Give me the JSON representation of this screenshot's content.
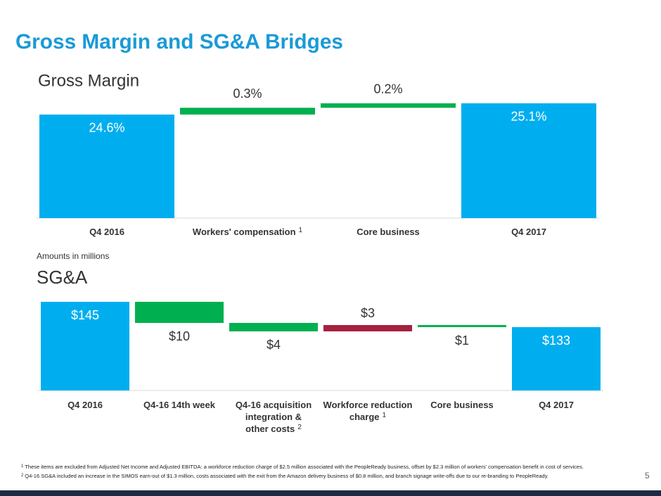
{
  "title": "Gross Margin and SG&A Bridges",
  "note": "Amounts in millions",
  "chart_data": [
    {
      "type": "waterfall",
      "title": "Gross Margin",
      "categories": [
        "Q4 2016",
        "Workers' compensation",
        "Core business",
        "Q4 2017"
      ],
      "category_notes": [
        null,
        "1",
        null,
        null
      ],
      "measure": [
        "total",
        "relative",
        "relative",
        "total"
      ],
      "values": [
        24.6,
        0.3,
        0.2,
        25.1
      ],
      "value_labels": [
        "24.6%",
        "0.3%",
        "0.2%",
        "25.1%"
      ],
      "colors": [
        "#00aeef",
        "#00b050",
        "#00b050",
        "#00aeef"
      ],
      "ylim": [
        20,
        26
      ]
    },
    {
      "type": "waterfall",
      "title": "SG&A",
      "categories": [
        [
          "Q4 2016"
        ],
        [
          "Q4-16 14th week"
        ],
        [
          "Q4-16 acquisition",
          "integration &",
          "other costs"
        ],
        [
          "Workforce reduction",
          "charge"
        ],
        [
          "Core business"
        ],
        [
          "Q4 2017"
        ]
      ],
      "category_notes": [
        null,
        null,
        "2",
        "1",
        null,
        null
      ],
      "measure": [
        "total",
        "relative",
        "relative",
        "relative",
        "relative",
        "total"
      ],
      "values": [
        145,
        -10,
        -4,
        3,
        -1,
        133
      ],
      "value_labels": [
        "$145",
        "$10",
        "$4",
        "$3",
        "$1",
        "$133"
      ],
      "colors": [
        "#00aeef",
        "#00b050",
        "#00b050",
        "#a6203f",
        "#00b050",
        "#00aeef"
      ],
      "ylim": [
        103,
        150
      ]
    }
  ],
  "footnotes": [
    {
      "marker": "1",
      "text": "These items are excluded from Adjusted Net Income and Adjusted EBITDA: a workforce reduction charge of $2.5 million associated with the PeopleReady business, offset by $2.3 million of workers' compensation benefit in cost of services."
    },
    {
      "marker": "2",
      "text": "Q4-16 SG&A included an increase in the SIMOS earn-out of $1.3 million, costs associated with the exit from the Amazon delivery business of $0.8 million, and branch signage write-offs due to our re-branding to PeopleReady."
    }
  ],
  "page_number": "5"
}
